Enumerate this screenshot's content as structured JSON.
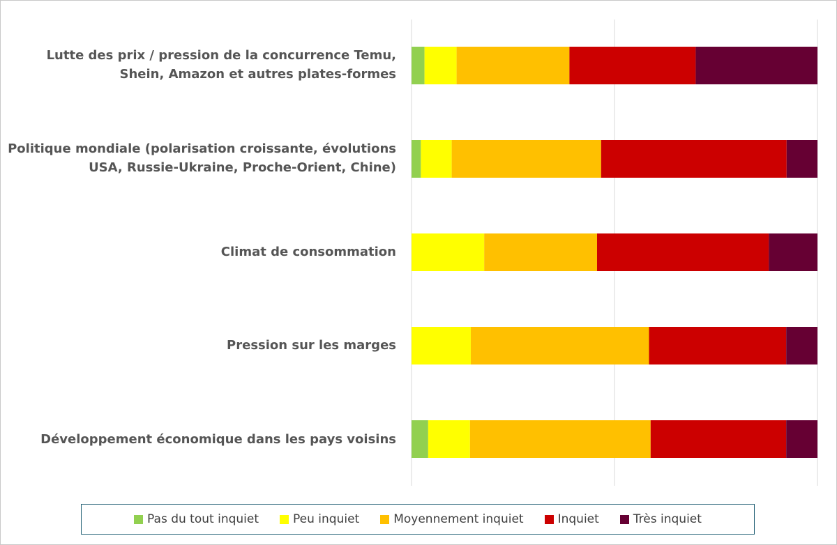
{
  "chart_data": {
    "type": "bar",
    "orientation": "horizontal",
    "stacked": true,
    "percent_stacked": true,
    "categories": [
      "Lutte des prix / pression de la concurrence Temu, Shein, Amazon et autres plates-formes",
      "Politique mondiale (polarisation croissante, évolutions USA, Russie-Ukraine, Proche-Orient, Chine)",
      "Climat de consommation",
      "Pression sur les marges",
      "Développement économique dans les pays voisins"
    ],
    "series": [
      {
        "name": "Pas du tout inquiet",
        "color": "#92d050",
        "values": [
          3.2,
          2.3,
          0,
          0,
          4.1
        ]
      },
      {
        "name": "Peu inquiet",
        "color": "#ffff00",
        "values": [
          7.9,
          7.6,
          17.9,
          14.6,
          10.3
        ]
      },
      {
        "name": "Moyennement inquiet",
        "color": "#ffc000",
        "values": [
          27.8,
          36.8,
          27.8,
          43.9,
          44.5
        ]
      },
      {
        "name": "Inquiet",
        "color": "#cc0000",
        "values": [
          31.1,
          45.7,
          42.3,
          33.8,
          33.4
        ]
      },
      {
        "name": "Très inquiet",
        "color": "#660033",
        "values": [
          30.0,
          7.6,
          12.0,
          7.7,
          7.7
        ]
      }
    ],
    "xlim": [
      0,
      100
    ],
    "grid": true,
    "legend": "bottom"
  }
}
